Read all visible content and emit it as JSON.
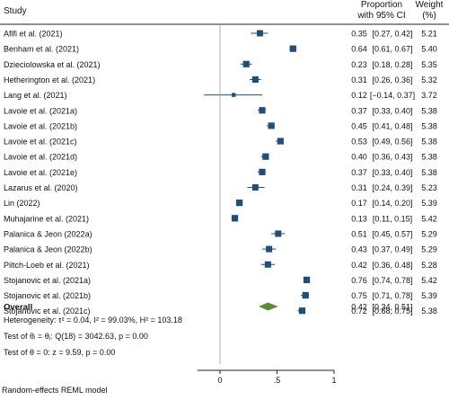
{
  "chart_data": {
    "type": "forest",
    "headers": {
      "study": "Study",
      "estimate_line1": "Proportion",
      "estimate_line2": "with 95% CI",
      "weight_line1": "Weight",
      "weight_line2": "(%)"
    },
    "studies": [
      {
        "name": "Afifi et al. (2021)",
        "est": 0.35,
        "lo": 0.27,
        "hi": 0.42,
        "est_text": "0.35",
        "ci_text": "[0.27, 0.42]",
        "weight": 5.21,
        "weight_text": "5.21"
      },
      {
        "name": "Benham et al. (2021)",
        "est": 0.64,
        "lo": 0.61,
        "hi": 0.67,
        "est_text": "0.64",
        "ci_text": "[0.61, 0.67]",
        "weight": 5.4,
        "weight_text": "5.40"
      },
      {
        "name": "Dzieciolowska et al. (2021)",
        "est": 0.23,
        "lo": 0.18,
        "hi": 0.28,
        "est_text": "0.23",
        "ci_text": "[0.18, 0.28]",
        "weight": 5.35,
        "weight_text": "5.35"
      },
      {
        "name": "Hetherington et al. (2021)",
        "est": 0.31,
        "lo": 0.26,
        "hi": 0.36,
        "est_text": "0.31",
        "ci_text": "[0.26, 0.36]",
        "weight": 5.32,
        "weight_text": "5.32"
      },
      {
        "name": "Lang et al. (2021)",
        "est": 0.12,
        "lo": -0.14,
        "hi": 0.37,
        "est_text": "0.12",
        "ci_text": "[−0.14, 0.37]",
        "weight": 3.72,
        "weight_text": "3.72"
      },
      {
        "name": "Lavoie et al. (2021a)",
        "est": 0.37,
        "lo": 0.33,
        "hi": 0.4,
        "est_text": "0.37",
        "ci_text": "[0.33, 0.40]",
        "weight": 5.38,
        "weight_text": "5.38"
      },
      {
        "name": "Lavoie et al. (2021b)",
        "est": 0.45,
        "lo": 0.41,
        "hi": 0.48,
        "est_text": "0.45",
        "ci_text": "[0.41, 0.48]",
        "weight": 5.38,
        "weight_text": "5.38"
      },
      {
        "name": "Lavoie et al. (2021c)",
        "est": 0.53,
        "lo": 0.49,
        "hi": 0.56,
        "est_text": "0.53",
        "ci_text": "[0.49, 0.56]",
        "weight": 5.38,
        "weight_text": "5.38"
      },
      {
        "name": "Lavoie et al. (2021d)",
        "est": 0.4,
        "lo": 0.36,
        "hi": 0.43,
        "est_text": "0.40",
        "ci_text": "[0.36, 0.43]",
        "weight": 5.38,
        "weight_text": "5.38"
      },
      {
        "name": "Lavoie et al. (2021e)",
        "est": 0.37,
        "lo": 0.33,
        "hi": 0.4,
        "est_text": "0.37",
        "ci_text": "[0.33, 0.40]",
        "weight": 5.38,
        "weight_text": "5.38"
      },
      {
        "name": "Lazarus et al. (2020)",
        "est": 0.31,
        "lo": 0.24,
        "hi": 0.39,
        "est_text": "0.31",
        "ci_text": "[0.24, 0.39]",
        "weight": 5.23,
        "weight_text": "5.23"
      },
      {
        "name": "Lin (2022)",
        "est": 0.17,
        "lo": 0.14,
        "hi": 0.2,
        "est_text": "0.17",
        "ci_text": "[0.14, 0.20]",
        "weight": 5.39,
        "weight_text": "5.39"
      },
      {
        "name": "Muhajarine et al. (2021)",
        "est": 0.13,
        "lo": 0.11,
        "hi": 0.15,
        "est_text": "0.13",
        "ci_text": "[0.11, 0.15]",
        "weight": 5.42,
        "weight_text": "5.42"
      },
      {
        "name": "Palanica & Jeon (2022a)",
        "est": 0.51,
        "lo": 0.45,
        "hi": 0.57,
        "est_text": "0.51",
        "ci_text": "[0.45, 0.57]",
        "weight": 5.29,
        "weight_text": "5.29"
      },
      {
        "name": "Palanica & Jeon (2022b)",
        "est": 0.43,
        "lo": 0.37,
        "hi": 0.49,
        "est_text": "0.43",
        "ci_text": "[0.37, 0.49]",
        "weight": 5.29,
        "weight_text": "5.29"
      },
      {
        "name": "Piltch-Loeb et al. (2021)",
        "est": 0.42,
        "lo": 0.36,
        "hi": 0.48,
        "est_text": "0.42",
        "ci_text": "[0.36, 0.48]",
        "weight": 5.28,
        "weight_text": "5.28"
      },
      {
        "name": "Stojanovic et al. (2021a)",
        "est": 0.76,
        "lo": 0.74,
        "hi": 0.78,
        "est_text": "0.76",
        "ci_text": "[0.74, 0.78]",
        "weight": 5.42,
        "weight_text": "5.42"
      },
      {
        "name": "Stojanovic et al. (2021b)",
        "est": 0.75,
        "lo": 0.71,
        "hi": 0.78,
        "est_text": "0.75",
        "ci_text": "[0.71, 0.78]",
        "weight": 5.39,
        "weight_text": "5.39"
      },
      {
        "name": "Stojanovic et al. (2021c)",
        "est": 0.72,
        "lo": 0.68,
        "hi": 0.75,
        "est_text": "0.72",
        "ci_text": "[0.68, 0.75]",
        "weight": 5.38,
        "weight_text": "5.38"
      }
    ],
    "overall": {
      "label": "Overall",
      "est": 0.42,
      "lo": 0.34,
      "hi": 0.51,
      "est_text": "0.42",
      "ci_text": "[0.34, 0.51]"
    },
    "stats": {
      "heterogeneity": "Heterogeneity: τ² = 0.04, I² = 99.03%, H² = 103.18",
      "test_theta_i": "Test of θᵢ = θⱼ: Q(18) = 3042.63, p = 0.00",
      "test_theta_0": "Test of θ = 0: z = 9.59, p = 0.00"
    },
    "x_axis": {
      "ticks": [
        0,
        0.5,
        1
      ],
      "tick_labels": [
        "0",
        ".5",
        "1"
      ],
      "range": [
        -0.2,
        1.0
      ]
    },
    "footer": "Random-effects REML model",
    "colors": {
      "marker": "#1f4e79",
      "overall": "#5a8a3a",
      "line": "#1f4e79"
    }
  }
}
